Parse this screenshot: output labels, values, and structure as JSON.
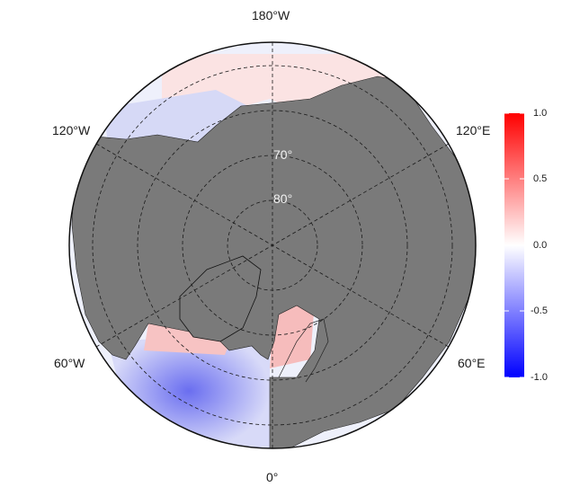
{
  "map": {
    "projection": "north-polar-stereographic",
    "land_color": "#7a7a7a",
    "ocean_colors": {
      "negative": "#0000ff",
      "zero": "#ffffff",
      "positive": "#ff0000"
    },
    "longitude_labels": {
      "top": "180°W",
      "upper_left": "120°W",
      "upper_right": "120°E",
      "lower_left": "60°W",
      "lower_right": "60°E",
      "bottom": "0°"
    },
    "latitude_labels": {
      "lat70": "70°",
      "lat80": "80°"
    }
  },
  "colorbar": {
    "ticks": [
      "1.0",
      "0.5",
      "0.0",
      "-0.5",
      "-1.0"
    ],
    "range": [
      -1.0,
      1.0
    ]
  }
}
